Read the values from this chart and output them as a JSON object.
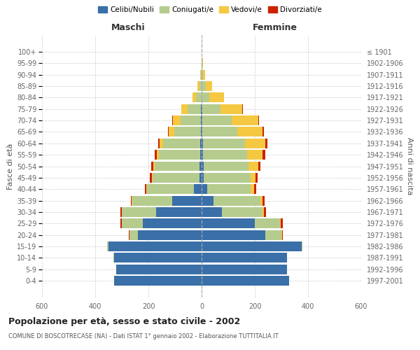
{
  "age_groups": [
    "0-4",
    "5-9",
    "10-14",
    "15-19",
    "20-24",
    "25-29",
    "30-34",
    "35-39",
    "40-44",
    "45-49",
    "50-54",
    "55-59",
    "60-64",
    "65-69",
    "70-74",
    "75-79",
    "80-84",
    "85-89",
    "90-94",
    "95-99",
    "100+"
  ],
  "birth_years": [
    "1997-2001",
    "1992-1996",
    "1987-1991",
    "1982-1986",
    "1977-1981",
    "1972-1976",
    "1967-1971",
    "1962-1966",
    "1957-1961",
    "1952-1956",
    "1947-1951",
    "1942-1946",
    "1937-1941",
    "1932-1936",
    "1927-1931",
    "1922-1926",
    "1917-1921",
    "1912-1916",
    "1907-1911",
    "1902-1906",
    "≤ 1901"
  ],
  "male": {
    "celibi": [
      330,
      320,
      330,
      350,
      240,
      220,
      170,
      110,
      30,
      8,
      7,
      5,
      4,
      3,
      3,
      2,
      0,
      0,
      0,
      0,
      0
    ],
    "coniugati": [
      0,
      0,
      2,
      5,
      30,
      80,
      130,
      150,
      175,
      175,
      170,
      155,
      140,
      100,
      75,
      50,
      20,
      8,
      3,
      0,
      0
    ],
    "vedovi": [
      0,
      0,
      0,
      0,
      0,
      0,
      1,
      2,
      2,
      3,
      5,
      8,
      15,
      20,
      30,
      25,
      15,
      8,
      2,
      0,
      0
    ],
    "divorziati": [
      0,
      0,
      0,
      0,
      3,
      5,
      5,
      5,
      5,
      8,
      8,
      8,
      5,
      3,
      2,
      0,
      0,
      0,
      0,
      0,
      0
    ]
  },
  "female": {
    "nubili": [
      330,
      320,
      320,
      375,
      240,
      200,
      75,
      45,
      20,
      8,
      7,
      5,
      4,
      3,
      3,
      2,
      0,
      0,
      0,
      0,
      0
    ],
    "coniugate": [
      0,
      0,
      2,
      5,
      60,
      95,
      155,
      175,
      165,
      175,
      170,
      165,
      160,
      130,
      110,
      70,
      30,
      15,
      5,
      2,
      0
    ],
    "vedove": [
      0,
      0,
      0,
      0,
      2,
      3,
      5,
      8,
      12,
      20,
      35,
      60,
      75,
      95,
      100,
      80,
      55,
      25,
      8,
      3,
      0
    ],
    "divorziate": [
      0,
      0,
      0,
      0,
      3,
      8,
      8,
      8,
      8,
      8,
      10,
      10,
      8,
      5,
      3,
      2,
      0,
      0,
      0,
      0,
      0
    ]
  },
  "colors": {
    "celibi_nubili": "#3a6fa8",
    "coniugati": "#b5cc8e",
    "vedovi": "#f5c842",
    "divorziati": "#cc2200"
  },
  "legend_labels": [
    "Celibi/Nubili",
    "Coniugati/e",
    "Vedovi/e",
    "Divorziati/e"
  ],
  "xlim": 600,
  "title": "Popolazione per età, sesso e stato civile - 2002",
  "subtitle": "COMUNE DI BOSCOTRECASE (NA) - Dati ISTAT 1° gennaio 2002 - Elaborazione TUTTITALIA.IT",
  "xlabel_left": "Maschi",
  "xlabel_right": "Femmine",
  "ylabel_left": "Fasce di età",
  "ylabel_right": "Anni di nascita",
  "bg_color": "#ffffff",
  "grid_color": "#cccccc"
}
